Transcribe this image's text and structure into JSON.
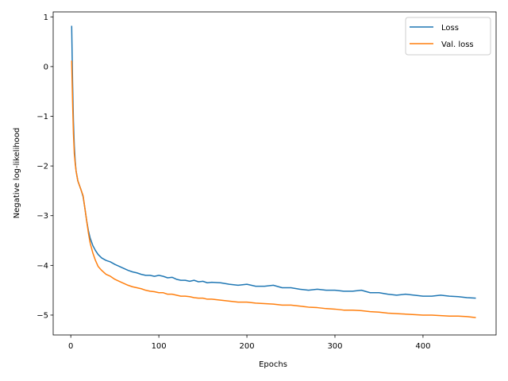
{
  "chart_data": {
    "type": "line",
    "title": "",
    "xlabel": "Epochs",
    "ylabel": "Negative log-likelihood",
    "xlim": [
      -20,
      483
    ],
    "ylim": [
      -5.4,
      1.1
    ],
    "xticks": [
      0,
      100,
      200,
      300,
      400
    ],
    "yticks": [
      1,
      0,
      -1,
      -2,
      -3,
      -4,
      -5
    ],
    "ytick_labels": [
      "1",
      "0",
      "−1",
      "−2",
      "−3",
      "−4",
      "−5"
    ],
    "grid": false,
    "legend_position": "top-right",
    "series": [
      {
        "name": "Loss",
        "color": "#1f77b4",
        "x": [
          1,
          2,
          3,
          4,
          5,
          6,
          8,
          10,
          12,
          14,
          16,
          18,
          20,
          22,
          25,
          28,
          31,
          35,
          40,
          45,
          50,
          55,
          60,
          65,
          70,
          75,
          80,
          85,
          90,
          95,
          100,
          105,
          110,
          115,
          120,
          125,
          130,
          135,
          140,
          145,
          150,
          155,
          160,
          170,
          180,
          190,
          200,
          210,
          220,
          230,
          240,
          250,
          260,
          270,
          280,
          290,
          300,
          310,
          320,
          330,
          340,
          350,
          360,
          370,
          380,
          390,
          400,
          410,
          420,
          430,
          440,
          450,
          460
        ],
        "values": [
          0.82,
          -0.3,
          -1.1,
          -1.6,
          -1.9,
          -2.1,
          -2.3,
          -2.4,
          -2.5,
          -2.62,
          -2.85,
          -3.1,
          -3.3,
          -3.45,
          -3.6,
          -3.7,
          -3.78,
          -3.85,
          -3.9,
          -3.93,
          -3.98,
          -4.02,
          -4.06,
          -4.1,
          -4.13,
          -4.15,
          -4.18,
          -4.2,
          -4.2,
          -4.22,
          -4.2,
          -4.22,
          -4.25,
          -4.24,
          -4.28,
          -4.3,
          -4.3,
          -4.32,
          -4.3,
          -4.33,
          -4.32,
          -4.35,
          -4.34,
          -4.35,
          -4.38,
          -4.4,
          -4.38,
          -4.42,
          -4.42,
          -4.4,
          -4.45,
          -4.45,
          -4.48,
          -4.5,
          -4.48,
          -4.5,
          -4.5,
          -4.52,
          -4.52,
          -4.5,
          -4.55,
          -4.55,
          -4.58,
          -4.6,
          -4.58,
          -4.6,
          -4.62,
          -4.62,
          -4.6,
          -4.62,
          -4.63,
          -4.65,
          -4.66
        ]
      },
      {
        "name": "Val. loss",
        "color": "#ff7f0e",
        "x": [
          1,
          2,
          3,
          4,
          5,
          6,
          8,
          10,
          12,
          14,
          16,
          18,
          20,
          22,
          25,
          28,
          31,
          35,
          40,
          45,
          50,
          55,
          60,
          65,
          70,
          75,
          80,
          85,
          90,
          95,
          100,
          105,
          110,
          115,
          120,
          125,
          130,
          135,
          140,
          145,
          150,
          155,
          160,
          170,
          180,
          190,
          200,
          210,
          220,
          230,
          240,
          250,
          260,
          270,
          280,
          290,
          300,
          310,
          320,
          330,
          340,
          350,
          360,
          370,
          380,
          390,
          400,
          410,
          420,
          430,
          440,
          450,
          460
        ],
        "values": [
          0.12,
          -0.7,
          -1.35,
          -1.75,
          -1.95,
          -2.1,
          -2.3,
          -2.4,
          -2.5,
          -2.6,
          -2.85,
          -3.1,
          -3.35,
          -3.55,
          -3.75,
          -3.9,
          -4.02,
          -4.1,
          -4.18,
          -4.22,
          -4.28,
          -4.32,
          -4.36,
          -4.4,
          -4.43,
          -4.45,
          -4.47,
          -4.5,
          -4.52,
          -4.53,
          -4.55,
          -4.55,
          -4.58,
          -4.58,
          -4.6,
          -4.62,
          -4.62,
          -4.63,
          -4.65,
          -4.66,
          -4.66,
          -4.68,
          -4.68,
          -4.7,
          -4.72,
          -4.74,
          -4.74,
          -4.76,
          -4.77,
          -4.78,
          -4.8,
          -4.8,
          -4.82,
          -4.84,
          -4.85,
          -4.87,
          -4.88,
          -4.9,
          -4.9,
          -4.91,
          -4.93,
          -4.94,
          -4.96,
          -4.97,
          -4.98,
          -4.99,
          -5.0,
          -5.0,
          -5.01,
          -5.02,
          -5.02,
          -5.03,
          -5.05
        ]
      }
    ]
  }
}
